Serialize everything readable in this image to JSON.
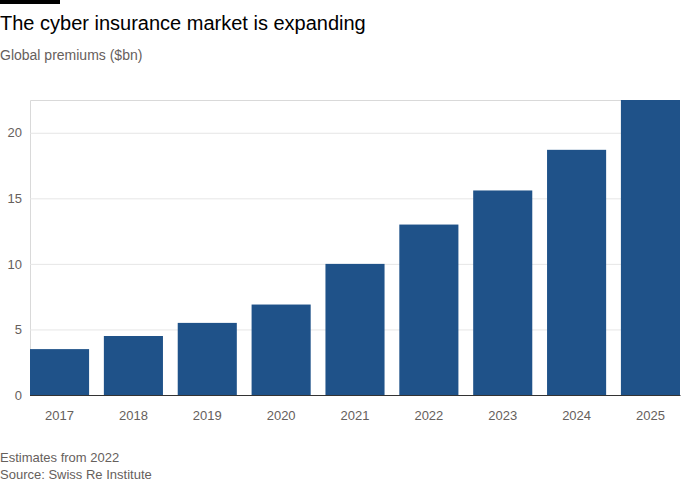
{
  "chart_data": {
    "type": "bar",
    "title": "The cyber insurance market is expanding",
    "subtitle": "Global premiums ($bn)",
    "note": "Estimates from 2022",
    "source": "Source: Swiss Re Institute",
    "categories": [
      "2017",
      "2018",
      "2019",
      "2020",
      "2021",
      "2022",
      "2023",
      "2024",
      "2025"
    ],
    "values": [
      3.5,
      4.5,
      5.5,
      6.9,
      10,
      13,
      15.6,
      18.7,
      22.5
    ],
    "color": "#1f5289",
    "ylim": [
      0,
      22.5
    ],
    "yticks": [
      0,
      5,
      10,
      15,
      20
    ],
    "grid": true
  }
}
